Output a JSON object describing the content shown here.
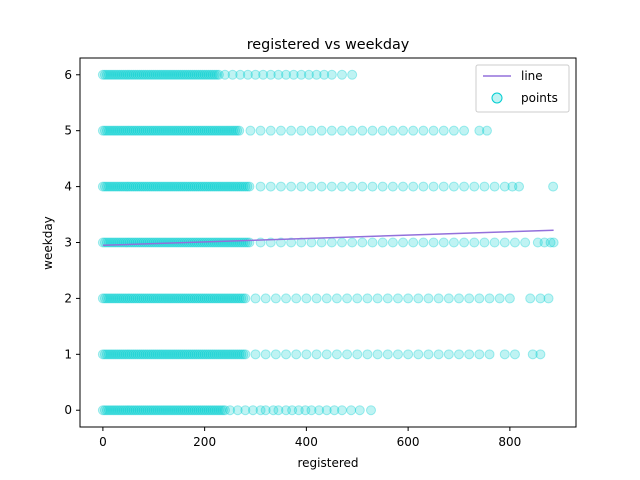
{
  "chart_data": {
    "type": "scatter",
    "title": "registered vs weekday",
    "xlabel": "registered",
    "ylabel": "weekday",
    "xlim": [
      -45,
      930
    ],
    "ylim": [
      -0.3,
      6.3
    ],
    "xticks": [
      0,
      200,
      400,
      600,
      800
    ],
    "yticks": [
      0,
      1,
      2,
      3,
      4,
      5,
      6
    ],
    "grid": false,
    "legend_position": "top-right",
    "colors": {
      "points": "#00ced1",
      "line": "#9370db"
    },
    "series": [
      {
        "name": "line",
        "kind": "line",
        "x": [
          0,
          886
        ],
        "y": [
          2.95,
          3.22
        ]
      },
      {
        "name": "points",
        "kind": "scatter",
        "rows": [
          {
            "y": 0,
            "dense_max": 240,
            "sparse_x": [
              250,
              265,
              280,
              295,
              310,
              320,
              335,
              345,
              360,
              372,
              385,
              398,
              410,
              425,
              440,
              455,
              470,
              488,
              505,
              527
            ]
          },
          {
            "y": 1,
            "dense_max": 280,
            "sparse_x": [
              300,
              320,
              340,
              360,
              380,
              400,
              420,
              440,
              460,
              480,
              500,
              520,
              540,
              560,
              580,
              600,
              620,
              640,
              660,
              680,
              700,
              720,
              740,
              760,
              790,
              810,
              845,
              860
            ]
          },
          {
            "y": 2,
            "dense_max": 280,
            "sparse_x": [
              300,
              320,
              340,
              360,
              380,
              400,
              420,
              440,
              460,
              480,
              500,
              520,
              540,
              560,
              580,
              600,
              620,
              640,
              660,
              680,
              700,
              720,
              740,
              760,
              780,
              800,
              840,
              860,
              876
            ]
          },
          {
            "y": 3,
            "dense_max": 290,
            "sparse_x": [
              310,
              330,
              350,
              370,
              390,
              410,
              430,
              450,
              470,
              490,
              510,
              530,
              550,
              570,
              590,
              610,
              630,
              650,
              670,
              690,
              710,
              730,
              750,
              770,
              790,
              810,
              830,
              855,
              868,
              880,
              886
            ]
          },
          {
            "y": 4,
            "dense_max": 290,
            "sparse_x": [
              310,
              330,
              350,
              370,
              390,
              410,
              430,
              450,
              470,
              490,
              510,
              530,
              550,
              570,
              590,
              610,
              630,
              650,
              670,
              690,
              710,
              730,
              750,
              770,
              790,
              805,
              818,
              885
            ]
          },
          {
            "y": 5,
            "dense_max": 270,
            "sparse_x": [
              290,
              310,
              330,
              350,
              370,
              390,
              410,
              430,
              450,
              470,
              490,
              510,
              530,
              550,
              570,
              590,
              610,
              630,
              650,
              670,
              690,
              710,
              740,
              755
            ]
          },
          {
            "y": 6,
            "dense_max": 230,
            "sparse_x": [
              240,
              255,
              270,
              285,
              300,
              315,
              330,
              345,
              360,
              375,
              390,
              405,
              420,
              435,
              450,
              470,
              490
            ]
          }
        ]
      }
    ]
  }
}
